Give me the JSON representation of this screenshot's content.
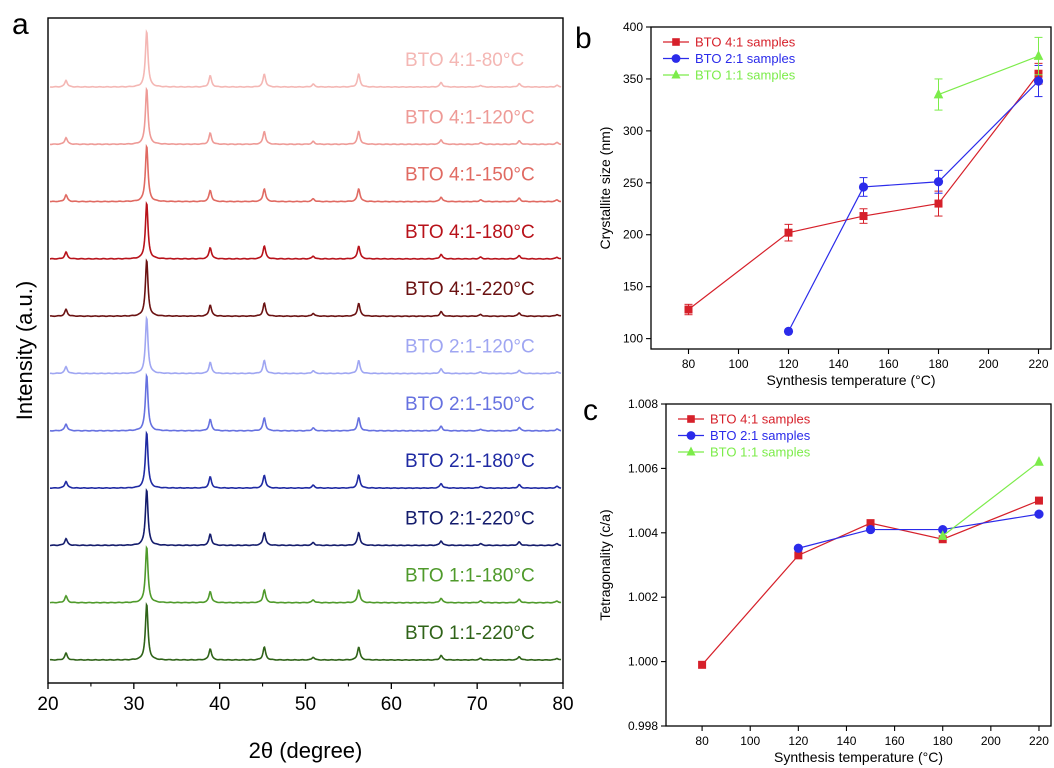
{
  "chart_data": [
    {
      "panel_label": "a",
      "type": "line",
      "xlabel": "2θ (degree)",
      "ylabel": "Intensity (a.u.)",
      "xlim": [
        20,
        80
      ],
      "xticks": [
        "20",
        "30",
        "40",
        "50",
        "60",
        "70",
        "80"
      ],
      "series": [
        {
          "name": "BTO 4:1-80°C",
          "color": "#f4b7b4"
        },
        {
          "name": "BTO 4:1-120°C",
          "color": "#ee9a96"
        },
        {
          "name": "BTO 4:1-150°C",
          "color": "#e06a62"
        },
        {
          "name": "BTO 4:1-180°C",
          "color": "#b8121a"
        },
        {
          "name": "BTO 4:1-220°C",
          "color": "#6b1212"
        },
        {
          "name": "BTO 2:1-120°C",
          "color": "#9fa6f2"
        },
        {
          "name": "BTO 2:1-150°C",
          "color": "#6671e0"
        },
        {
          "name": "BTO 2:1-180°C",
          "color": "#1f2aa3"
        },
        {
          "name": "BTO 2:1-220°C",
          "color": "#141c6c"
        },
        {
          "name": "BTO 1:1-180°C",
          "color": "#4f9a2b"
        },
        {
          "name": "BTO 1:1-220°C",
          "color": "#2f6318"
        }
      ],
      "peaks_2theta": [
        22.1,
        31.5,
        38.9,
        45.2,
        50.9,
        56.2,
        65.8,
        70.4,
        74.9,
        79.3
      ],
      "peak_rel_intensity": [
        0.12,
        1.0,
        0.2,
        0.23,
        0.05,
        0.23,
        0.08,
        0.03,
        0.06,
        0.03
      ]
    },
    {
      "panel_label": "b",
      "type": "line",
      "xlabel": "Synthesis temperature (°C)",
      "ylabel": "Crystallite size (nm)",
      "xlim": [
        65,
        225
      ],
      "ylim": [
        90,
        400
      ],
      "xticks": [
        80,
        100,
        120,
        140,
        160,
        180,
        200,
        220
      ],
      "yticks": [
        100,
        150,
        200,
        250,
        300,
        350,
        400
      ],
      "legend_position": "top-left",
      "series": [
        {
          "name": "BTO 4:1 samples",
          "color": "#d6202a",
          "marker": "square",
          "x": [
            80,
            120,
            150,
            180,
            220
          ],
          "y": [
            128,
            202,
            218,
            230,
            355
          ],
          "err": [
            5,
            8,
            7,
            12,
            10
          ]
        },
        {
          "name": "BTO 2:1 samples",
          "color": "#2b2bea",
          "marker": "circle",
          "x": [
            120,
            150,
            180,
            220
          ],
          "y": [
            107,
            246,
            251,
            348
          ],
          "err": [
            0,
            9,
            11,
            15
          ]
        },
        {
          "name": "BTO 1:1 samples",
          "color": "#7cec4a",
          "marker": "triangle",
          "x": [
            180,
            220
          ],
          "y": [
            335,
            372
          ],
          "err": [
            15,
            18
          ]
        }
      ]
    },
    {
      "panel_label": "c",
      "type": "line",
      "xlabel": "Synthesis temperature (°C)",
      "ylabel": "Tetragonality (c/a)",
      "xlim": [
        65,
        225
      ],
      "ylim": [
        0.998,
        1.008
      ],
      "xticks": [
        80,
        100,
        120,
        140,
        160,
        180,
        200,
        220
      ],
      "yticks": [
        "0.998",
        "1.000",
        "1.002",
        "1.004",
        "1.006",
        "1.008"
      ],
      "legend_position": "top-left",
      "series": [
        {
          "name": "BTO 4:1 samples",
          "color": "#d6202a",
          "marker": "square",
          "x": [
            80,
            120,
            150,
            180,
            220
          ],
          "y": [
            0.9999,
            1.0033,
            1.0043,
            1.0038,
            1.005
          ]
        },
        {
          "name": "BTO 2:1 samples",
          "color": "#2b2bea",
          "marker": "circle",
          "x": [
            120,
            150,
            180,
            220
          ],
          "y": [
            1.00352,
            1.0041,
            1.0041,
            1.00458
          ]
        },
        {
          "name": "BTO 1:1 samples",
          "color": "#7cec4a",
          "marker": "triangle",
          "x": [
            180,
            220
          ],
          "y": [
            1.0039,
            1.0062
          ]
        }
      ]
    }
  ]
}
